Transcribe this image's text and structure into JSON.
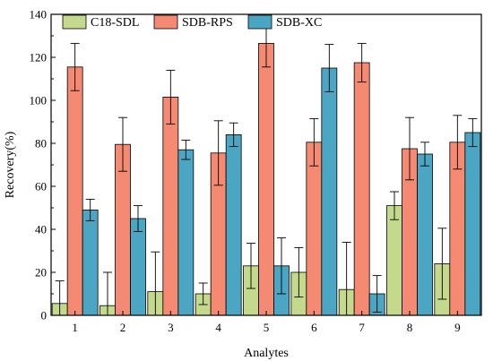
{
  "chart_data": {
    "type": "bar",
    "categories": [
      "1",
      "2",
      "3",
      "4",
      "5",
      "6",
      "7",
      "8",
      "9"
    ],
    "series": [
      {
        "name": "C18-SDL",
        "color": "#c5d98c",
        "values": [
          5.5,
          4.5,
          11,
          10,
          23,
          20,
          12,
          51,
          24
        ],
        "errors": [
          10.5,
          15.5,
          18.5,
          5,
          10.5,
          11.5,
          22,
          6.5,
          16.5
        ]
      },
      {
        "name": "SDB-RPS",
        "color": "#f58a72",
        "values": [
          115.5,
          79.5,
          101.5,
          75.5,
          126.5,
          80.5,
          117.5,
          77.5,
          80.5
        ],
        "errors": [
          11,
          12.5,
          12.5,
          15,
          11,
          11,
          9,
          14.5,
          12.5
        ]
      },
      {
        "name": "SDB-XC",
        "color": "#4ba6c4",
        "values": [
          49,
          45,
          77,
          84,
          23,
          115,
          10,
          75,
          85
        ],
        "errors": [
          5,
          6,
          4.5,
          5.5,
          13,
          11,
          8.5,
          5.5,
          6.5
        ]
      }
    ],
    "xlabel": "Analytes",
    "ylabel": "Recovery(%)",
    "ylim": [
      0,
      140
    ],
    "yticks": [
      0,
      20,
      40,
      60,
      80,
      100,
      120,
      140
    ],
    "legend_position": "top-left",
    "grid": false
  }
}
